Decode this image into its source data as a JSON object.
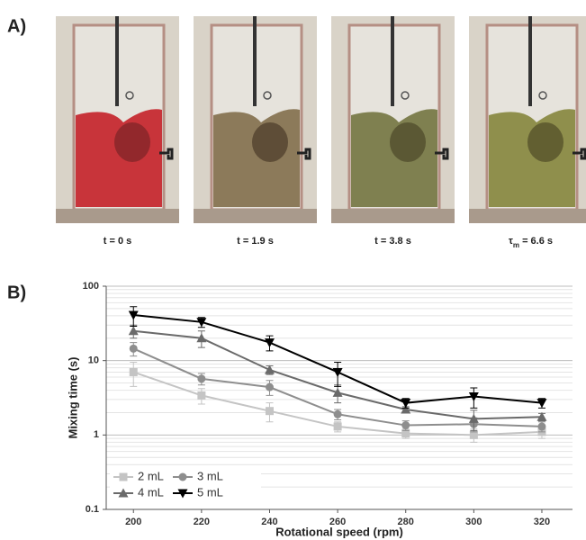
{
  "panel_labels": [
    "A)",
    "B)"
  ],
  "photos": {
    "captions": [
      "t = 0 s",
      "t = 1.9 s",
      "t = 3.8 s",
      {
        "symbol": "τ",
        "subscript": "m",
        "text": " = 6.6 s"
      }
    ]
  },
  "chart_data": {
    "type": "line",
    "x_label": "Rotational speed (rpm)",
    "y_label": "Mixing time (s)",
    "x": [
      200,
      220,
      240,
      260,
      280,
      300,
      320
    ],
    "xlim": [
      192,
      329
    ],
    "xticks": [
      200,
      220,
      240,
      260,
      280,
      300,
      320
    ],
    "ylim": [
      0.1,
      100
    ],
    "yticks": [
      0.1,
      1,
      10,
      100
    ],
    "log_y": true,
    "grid": true,
    "minor_grid": true,
    "legend": "lower left",
    "series": [
      {
        "name": "2 mL",
        "color": "#c4c4c4",
        "marker": "square",
        "values": [
          7.0,
          3.4,
          2.1,
          1.3,
          1.05,
          1.0,
          1.1
        ],
        "errors": [
          2.5,
          0.8,
          0.6,
          0.2,
          0.15,
          0.2,
          0.2
        ]
      },
      {
        "name": "3 mL",
        "color": "#8e8e8e",
        "marker": "circle",
        "values": [
          14.5,
          5.7,
          4.4,
          1.9,
          1.35,
          1.4,
          1.3
        ],
        "errors": [
          3,
          1,
          1,
          0.3,
          0.2,
          0.3,
          0.2
        ]
      },
      {
        "name": "4 mL",
        "color": "#6a6a6a",
        "marker": "triangle",
        "values": [
          25,
          20,
          7.5,
          3.7,
          2.2,
          1.65,
          1.75
        ],
        "errors": [
          5,
          5,
          1,
          1,
          0.2,
          0.5,
          0.2
        ]
      },
      {
        "name": "5 mL",
        "color": "#000000",
        "marker": "triangle-down",
        "values": [
          41,
          33,
          17.5,
          7,
          2.7,
          3.3,
          2.7
        ],
        "errors": [
          12,
          5,
          4,
          2.5,
          0.4,
          1,
          0.4
        ]
      }
    ]
  }
}
